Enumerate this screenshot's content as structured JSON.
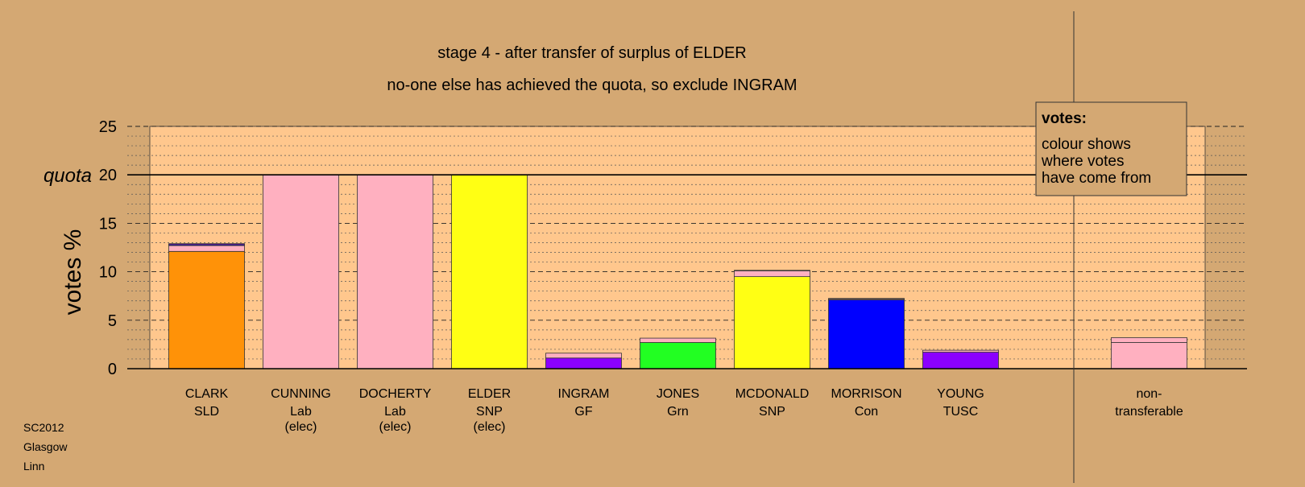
{
  "chart_data": {
    "type": "bar",
    "subtype": "stacked",
    "title": "stage 4 - after transfer of surplus of ELDER",
    "subtitle": "no-one else has achieved the quota, so exclude INGRAM",
    "ylabel": "votes %",
    "quota_label": "quota",
    "quota_value": 20,
    "ylim": [
      0,
      25
    ],
    "yticks": [
      0,
      5,
      10,
      15,
      20,
      25
    ],
    "grid": "dashed at multiples of 5, dotted at each 1",
    "legend": {
      "title": "votes:",
      "lines": [
        "colour shows",
        "where votes",
        "have come from"
      ],
      "position": "top-right"
    },
    "candidates": [
      {
        "name": "CLARK",
        "party": "SLD",
        "status": "",
        "segments": [
          {
            "source": "SLD",
            "value": 12.1,
            "color": "#ff9208"
          },
          {
            "source": "Lab",
            "value": 0.6,
            "color": "#ffb0c0"
          },
          {
            "source": "Con",
            "value": 0.1,
            "color": "#0000ff"
          },
          {
            "source": "GF",
            "value": 0.1,
            "color": "#8b00ff"
          }
        ]
      },
      {
        "name": "CUNNING",
        "party": "Lab",
        "status": "(elec)",
        "segments": [
          {
            "source": "Lab",
            "value": 20.0,
            "color": "#ffb0c0"
          }
        ]
      },
      {
        "name": "DOCHERTY",
        "party": "Lab",
        "status": "(elec)",
        "segments": [
          {
            "source": "Lab",
            "value": 20.0,
            "color": "#ffb0c0"
          }
        ]
      },
      {
        "name": "ELDER",
        "party": "SNP",
        "status": "(elec)",
        "segments": [
          {
            "source": "SNP",
            "value": 20.0,
            "color": "#ffff14"
          }
        ]
      },
      {
        "name": "INGRAM",
        "party": "GF",
        "status": "",
        "segments": [
          {
            "source": "GF",
            "value": 1.1,
            "color": "#8b00ff"
          },
          {
            "source": "Lab",
            "value": 0.5,
            "color": "#ffb0c0"
          }
        ]
      },
      {
        "name": "JONES",
        "party": "Grn",
        "status": "",
        "segments": [
          {
            "source": "Grn",
            "value": 2.7,
            "color": "#22ff22"
          },
          {
            "source": "Lab",
            "value": 0.45,
            "color": "#ffb0c0"
          }
        ]
      },
      {
        "name": "MCDONALD",
        "party": "SNP",
        "status": "",
        "segments": [
          {
            "source": "SNP",
            "value": 9.5,
            "color": "#ffff14"
          },
          {
            "source": "Lab",
            "value": 0.6,
            "color": "#ffb0c0"
          },
          {
            "source": "GF",
            "value": 0.05,
            "color": "#8b00ff"
          }
        ]
      },
      {
        "name": "MORRISON",
        "party": "Con",
        "status": "",
        "segments": [
          {
            "source": "Con",
            "value": 7.1,
            "color": "#0000ff"
          },
          {
            "source": "Lab",
            "value": 0.1,
            "color": "#ffb0c0"
          },
          {
            "source": "GF",
            "value": 0.05,
            "color": "#8b00ff"
          }
        ]
      },
      {
        "name": "YOUNG",
        "party": "TUSC",
        "status": "",
        "segments": [
          {
            "source": "TUSC",
            "value": 1.7,
            "color": "#8b00ff"
          },
          {
            "source": "Lab",
            "value": 0.2,
            "color": "#ffb0c0"
          }
        ]
      }
    ],
    "non_transferable": {
      "label_line1": "non-",
      "label_line2": "transferable",
      "segments": [
        {
          "source": "Lab",
          "value": 2.7,
          "color": "#ffb0c0"
        },
        {
          "source": "other",
          "value": 0.5,
          "color": "#ffb0c0"
        }
      ]
    }
  },
  "footer": {
    "lines": [
      "SC2012",
      "Glasgow",
      "Linn"
    ]
  },
  "colors": {
    "background": "#d4a873",
    "plot_area": "#ffc78d"
  }
}
